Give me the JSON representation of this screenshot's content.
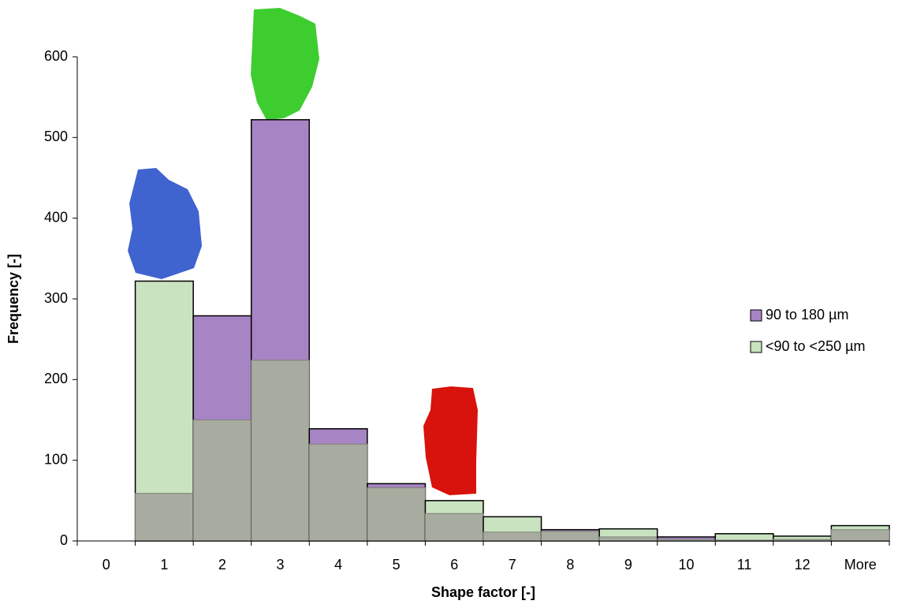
{
  "chart_data": {
    "type": "bar",
    "x_label": "Shape factor [-]",
    "y_label": "Frequency [-]",
    "categories": [
      "0",
      "1",
      "2",
      "3",
      "4",
      "5",
      "6",
      "7",
      "8",
      "9",
      "10",
      "11",
      "12",
      "More"
    ],
    "series": [
      {
        "name": "90 to 180 µm",
        "color": "#a784c4",
        "values": [
          0,
          59,
          279,
          522,
          139,
          71,
          34,
          11,
          14,
          5,
          5,
          1,
          2,
          14
        ]
      },
      {
        "name": "<90 to <250 µm",
        "color": "#c9e3c0",
        "values": [
          0,
          322,
          150,
          224,
          120,
          66,
          50,
          30,
          12,
          15,
          2,
          9,
          6,
          19
        ]
      }
    ],
    "overlap_color": "#a8ab9f",
    "ylim": [
      0,
      600
    ],
    "yticks": [
      0,
      100,
      200,
      300,
      400,
      500,
      600
    ],
    "legend": "right"
  }
}
